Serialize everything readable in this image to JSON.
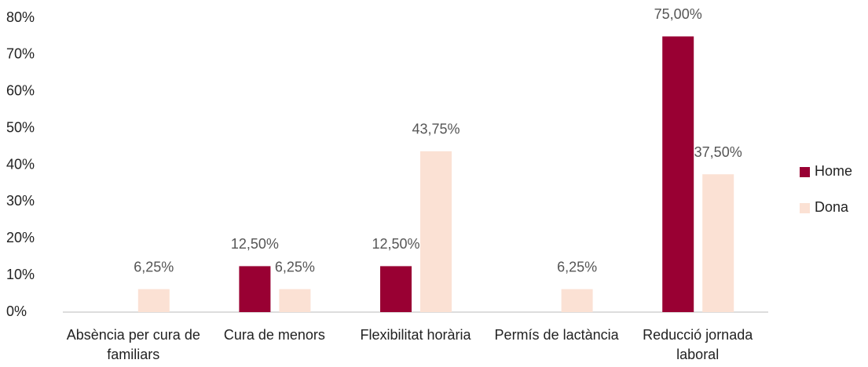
{
  "chart_data": {
    "type": "bar",
    "categories": [
      "Absència per cura de familiars",
      "Cura de menors",
      "Flexibilitat horària",
      "Permís de lactància",
      "Reducció jornada laboral"
    ],
    "series": [
      {
        "name": "Home",
        "color": "#990033",
        "values": [
          null,
          12.5,
          12.5,
          null,
          75
        ],
        "value_labels": [
          null,
          "12,50%",
          "12,50%",
          null,
          "75,00%"
        ]
      },
      {
        "name": "Dona",
        "color": "#fbe1d4",
        "values": [
          6.25,
          6.25,
          43.75,
          6.25,
          37.5
        ],
        "value_labels": [
          "6,25%",
          "6,25%",
          "43,75%",
          "6,25%",
          "37,50%"
        ]
      }
    ],
    "ylim": [
      0,
      80
    ],
    "yticks": [
      {
        "value": 0,
        "label": "0%"
      },
      {
        "value": 10,
        "label": "10%"
      },
      {
        "value": 20,
        "label": "20%"
      },
      {
        "value": 30,
        "label": "30%"
      },
      {
        "value": 40,
        "label": "40%"
      },
      {
        "value": 50,
        "label": "50%"
      },
      {
        "value": 60,
        "label": "60%"
      },
      {
        "value": 70,
        "label": "70%"
      },
      {
        "value": 80,
        "label": "80%"
      }
    ],
    "grid": false,
    "legend": "right"
  }
}
